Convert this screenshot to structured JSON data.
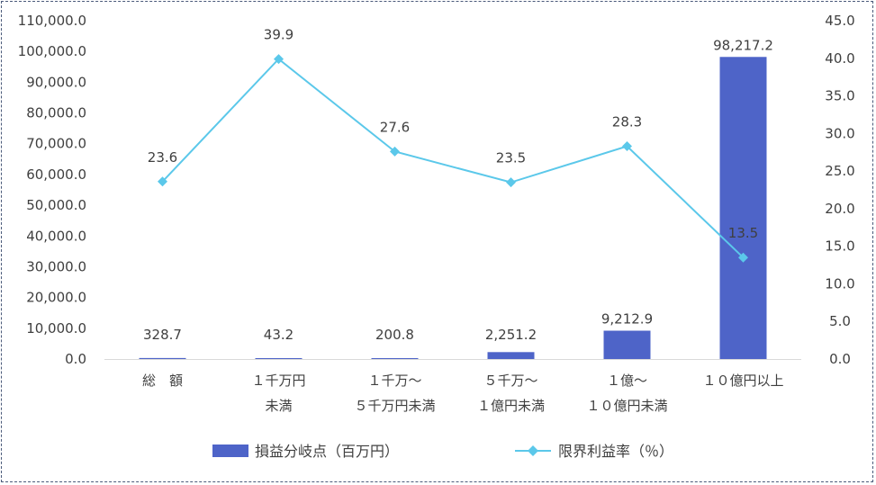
{
  "chart_data": {
    "type": "bar",
    "categories": [
      [
        "総　額"
      ],
      [
        "１千万円",
        "未満"
      ],
      [
        "１千万～",
        "５千万円未満"
      ],
      [
        "５千万～",
        "１億円未満"
      ],
      [
        "１億～",
        "１０億円未満"
      ],
      [
        "１０億円以上"
      ]
    ],
    "series": [
      {
        "name": "損益分岐点（百万円）",
        "type": "bar",
        "axis": "left",
        "color": "#4e64c8",
        "values": [
          328.7,
          43.2,
          200.8,
          2251.2,
          9212.9,
          98217.2
        ],
        "labels": [
          "328.7",
          "43.2",
          "200.8",
          "2,251.2",
          "9,212.9",
          "98,217.2"
        ]
      },
      {
        "name": "限界利益率（％）",
        "type": "line",
        "axis": "right",
        "color": "#5bc8ea",
        "marker": "diamond",
        "values": [
          23.6,
          39.9,
          27.6,
          23.5,
          28.3,
          13.5
        ],
        "labels": [
          "23.6",
          "39.9",
          "27.6",
          "23.5",
          "28.3",
          "13.5"
        ]
      }
    ],
    "y_left": {
      "min": 0,
      "max": 110000,
      "step": 10000,
      "ticks": [
        "0.0",
        "10,000.0",
        "20,000.0",
        "30,000.0",
        "40,000.0",
        "50,000.0",
        "60,000.0",
        "70,000.0",
        "80,000.0",
        "90,000.0",
        "100,000.0",
        "110,000.0"
      ]
    },
    "y_right": {
      "min": 0,
      "max": 45,
      "step": 5,
      "ticks": [
        "0.0",
        "5.0",
        "10.0",
        "15.0",
        "20.0",
        "25.0",
        "30.0",
        "35.0",
        "40.0",
        "45.0"
      ]
    },
    "grid": false,
    "legend": "bottom"
  }
}
